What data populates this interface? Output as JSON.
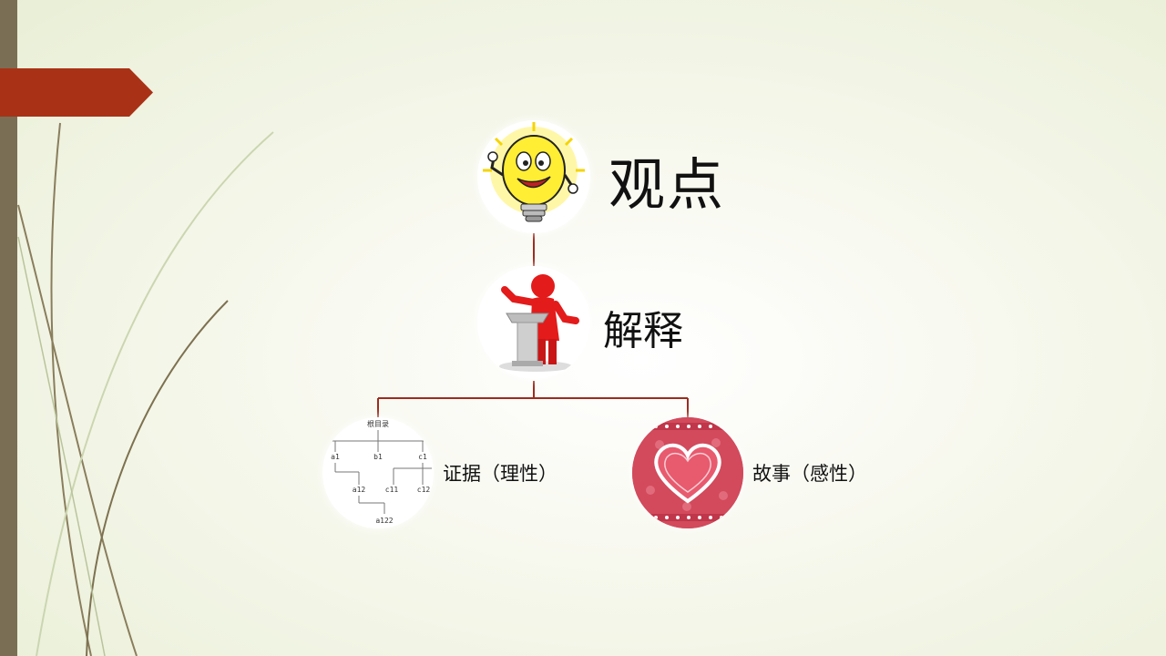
{
  "nodes": {
    "viewpoint": {
      "label": "观点",
      "icon": "lightbulb-mascot-icon"
    },
    "explanation": {
      "label": "解释",
      "icon": "speaker-at-podium-icon"
    },
    "evidence": {
      "label": "证据（理性）",
      "icon": "directory-tree-icon",
      "tree": {
        "root": "根目录",
        "l1": [
          "a1",
          "b1",
          "c1"
        ],
        "l2": [
          "a12",
          "c11",
          "c12"
        ],
        "l3": "a122"
      }
    },
    "story": {
      "label": "故事（感性）",
      "icon": "heart-icon"
    }
  },
  "colors": {
    "connector": "#9b2d1f",
    "accent_tab": "#a93216",
    "left_bar": "#7a6f55",
    "heart_bg": "#d24a5c"
  }
}
